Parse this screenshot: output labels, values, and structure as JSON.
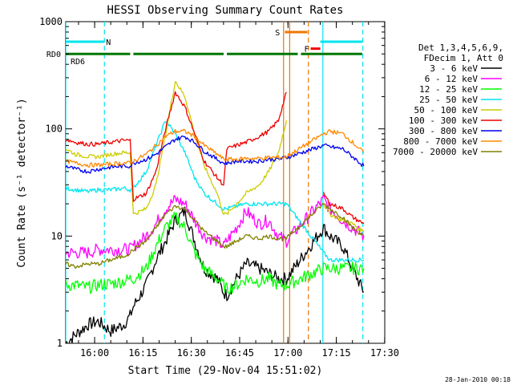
{
  "chart_data": {
    "type": "line",
    "title": "HESSI Observing Summary Count Rates",
    "xlabel": "Start Time (29-Nov-04 15:51:02)",
    "ylabel": "Count Rate (s⁻¹ detector⁻¹)",
    "y_scale": "log",
    "ylim": [
      1,
      1000
    ],
    "x_unit": "minutes after 15:51:02",
    "xlim": [
      0,
      99
    ],
    "x_ticks": [
      {
        "label": "16:00",
        "value": 8.97
      },
      {
        "label": "16:15",
        "value": 23.97
      },
      {
        "label": "16:30",
        "value": 38.97
      },
      {
        "label": "16:45",
        "value": 53.97
      },
      {
        "label": "17:00",
        "value": 68.97
      },
      {
        "label": "17:15",
        "value": 83.97
      },
      {
        "label": "17:30",
        "value": 98.97
      }
    ],
    "y_ticks": [
      {
        "label": "1",
        "value": 1
      },
      {
        "label": "10",
        "value": 10
      },
      {
        "label": "100",
        "value": 100
      },
      {
        "label": "1000",
        "value": 1000
      }
    ],
    "grid": false,
    "legend": {
      "position": "right",
      "header": [
        "Det 1,3,4,5,6,9,",
        "FDecim 1, Att 0"
      ]
    },
    "flags": [
      {
        "label": "N",
        "color": "#00e5ee",
        "y": 650,
        "segments": [
          [
            0,
            12
          ]
        ]
      },
      {
        "label": "N",
        "color": "#00e5ee",
        "y": 650,
        "segments": [
          [
            79,
            92
          ]
        ]
      },
      {
        "label": "RD0",
        "color": "#007700",
        "y": 500,
        "segments": [
          [
            0,
            20
          ],
          [
            21,
            49
          ],
          [
            50,
            72
          ],
          [
            73,
            92
          ]
        ]
      },
      {
        "label": "RD6",
        "color": "#007700",
        "y": 430,
        "segments": []
      },
      {
        "label": "S",
        "color": "#ee7700",
        "y": 800,
        "segments": [
          [
            68,
            75
          ]
        ]
      },
      {
        "label": "F",
        "color": "#ee0000",
        "y": 560,
        "segments": [
          [
            76,
            79
          ]
        ]
      }
    ],
    "vlines": [
      {
        "x": 0,
        "color": "#00e5ee",
        "style": "solid"
      },
      {
        "x": 12,
        "color": "#00e5ee",
        "style": "dashed"
      },
      {
        "x": 67.6,
        "color": "#ee7700",
        "style": "solid"
      },
      {
        "x": 69.5,
        "color": "#ee7700",
        "style": "solid"
      },
      {
        "x": 75.3,
        "color": "#ee7700",
        "style": "dashed"
      },
      {
        "x": 79.8,
        "color": "#00e5ee",
        "style": "solid"
      },
      {
        "x": 92.2,
        "color": "#00e5ee",
        "style": "dashed"
      }
    ],
    "series": [
      {
        "name": "3 - 6 keV",
        "color": "#000000",
        "x": [
          0,
          3,
          7,
          10,
          14,
          18,
          20,
          21,
          25,
          28,
          31,
          34,
          37,
          40,
          43,
          47,
          49,
          50,
          53,
          56,
          60,
          63,
          66,
          68.5,
          80,
          82,
          86,
          89,
          92.5
        ],
        "y": [
          1,
          1.2,
          1.5,
          1.6,
          1.3,
          1.5,
          1.8,
          2.2,
          3.5,
          6,
          9,
          14,
          17,
          9,
          5,
          4,
          3,
          2.8,
          4,
          5.5,
          5,
          4.5,
          4,
          4,
          12,
          10,
          8,
          5,
          3
        ]
      },
      {
        "name": "6 - 12 keV",
        "color": "#ff00ff",
        "x": [
          0,
          3,
          7,
          10,
          14,
          18,
          20,
          21,
          25,
          28,
          31,
          34,
          37,
          40,
          43,
          47,
          49,
          50,
          53,
          56,
          60,
          63,
          66,
          68.5,
          80,
          82,
          86,
          89,
          92.5
        ],
        "y": [
          7,
          7,
          7,
          7.5,
          7.5,
          7.5,
          7.5,
          8,
          10,
          13,
          18,
          22,
          20,
          14,
          10,
          9,
          8,
          9,
          12,
          17,
          13,
          14,
          10,
          9,
          22,
          18,
          14,
          12,
          10
        ]
      },
      {
        "name": "12 - 25 keV",
        "color": "#00ff00",
        "x": [
          0,
          3,
          7,
          10,
          14,
          18,
          20,
          21,
          25,
          28,
          31,
          34,
          37,
          40,
          43,
          47,
          49,
          50,
          53,
          56,
          60,
          63,
          66,
          68.5,
          80,
          82,
          86,
          89,
          92.5
        ],
        "y": [
          3.5,
          3.5,
          3.3,
          3.5,
          3.6,
          3.8,
          4,
          4,
          5,
          8,
          12,
          15,
          12,
          7,
          5,
          4,
          3.5,
          3.2,
          3.5,
          4,
          3.8,
          4,
          3.5,
          3.5,
          5,
          5,
          5,
          5,
          5
        ]
      },
      {
        "name": "25 - 50 keV",
        "color": "#00e5ee",
        "x": [
          0,
          3,
          7,
          10,
          14,
          18,
          20,
          21,
          25,
          28,
          31,
          34,
          37,
          40,
          43,
          47,
          49,
          50,
          53,
          56,
          60,
          63,
          66,
          68.5,
          80,
          82,
          86,
          89,
          92.5
        ],
        "y": [
          28,
          27,
          26,
          27,
          27,
          28,
          27,
          28,
          40,
          70,
          120,
          90,
          60,
          35,
          25,
          20,
          18,
          18,
          19,
          20,
          20,
          20,
          20,
          20,
          7,
          6,
          6,
          6,
          6
        ]
      },
      {
        "name": "50 - 100 keV",
        "color": "#cccc00",
        "x": [
          0,
          3,
          7,
          10,
          14,
          18,
          20,
          21,
          25,
          28,
          31,
          34,
          37,
          40,
          43,
          47,
          49,
          50,
          53,
          56,
          60,
          63,
          66,
          68.5,
          80,
          82,
          86,
          89,
          92.5
        ],
        "y": [
          65,
          58,
          55,
          55,
          58,
          60,
          60,
          16,
          18,
          30,
          90,
          280,
          200,
          90,
          45,
          25,
          16,
          16,
          20,
          25,
          30,
          40,
          60,
          120,
          20,
          16,
          14,
          13,
          11
        ]
      },
      {
        "name": "100 - 300 keV",
        "color": "#ee0000",
        "x": [
          0,
          3,
          7,
          10,
          14,
          18,
          20,
          21,
          25,
          28,
          31,
          34,
          37,
          40,
          43,
          47,
          49,
          50,
          53,
          56,
          60,
          63,
          66,
          68.5,
          80,
          82,
          86,
          89,
          92.5
        ],
        "y": [
          80,
          75,
          72,
          72,
          75,
          78,
          78,
          22,
          25,
          40,
          100,
          220,
          160,
          90,
          50,
          35,
          30,
          65,
          70,
          75,
          85,
          95,
          120,
          220,
          25,
          20,
          18,
          15,
          13
        ]
      },
      {
        "name": "300 - 800 keV",
        "color": "#0000ee",
        "x": [
          0,
          3,
          7,
          10,
          14,
          18,
          20,
          21,
          25,
          28,
          31,
          34,
          37,
          40,
          43,
          47,
          49,
          50,
          53,
          56,
          60,
          63,
          66,
          68.5,
          80,
          82,
          86,
          89,
          92.5
        ],
        "y": [
          45,
          42,
          40,
          42,
          44,
          45,
          45,
          48,
          52,
          58,
          68,
          80,
          85,
          75,
          62,
          52,
          48,
          48,
          50,
          50,
          50,
          52,
          52,
          54,
          70,
          68,
          65,
          55,
          45
        ]
      },
      {
        "name": "800 - 7000 keV",
        "color": "#ff8800",
        "x": [
          0,
          3,
          7,
          10,
          14,
          18,
          20,
          21,
          25,
          28,
          31,
          34,
          37,
          40,
          43,
          47,
          49,
          50,
          53,
          56,
          60,
          63,
          66,
          68.5,
          80,
          82,
          86,
          89,
          92.5
        ],
        "y": [
          50,
          48,
          46,
          46,
          47,
          48,
          48,
          50,
          58,
          70,
          85,
          95,
          95,
          85,
          70,
          58,
          52,
          52,
          52,
          53,
          53,
          54,
          54,
          55,
          90,
          95,
          90,
          75,
          60
        ]
      },
      {
        "name": "7000 - 20000 keV",
        "color": "#808000",
        "x": [
          0,
          3,
          7,
          10,
          14,
          18,
          20,
          21,
          25,
          28,
          31,
          34,
          37,
          40,
          43,
          47,
          49,
          50,
          53,
          56,
          60,
          63,
          66,
          68.5,
          80,
          82,
          86,
          89,
          92.5
        ],
        "y": [
          5.5,
          5.2,
          5.5,
          5.5,
          6,
          6.5,
          7,
          7.5,
          9,
          12,
          16,
          19,
          18,
          14,
          11,
          9,
          8,
          8,
          9,
          10,
          9.5,
          10,
          9.5,
          9.5,
          20,
          18,
          15,
          12,
          10
        ]
      }
    ]
  },
  "footer": {
    "timestamp": "28-Jan-2010 00:18"
  }
}
